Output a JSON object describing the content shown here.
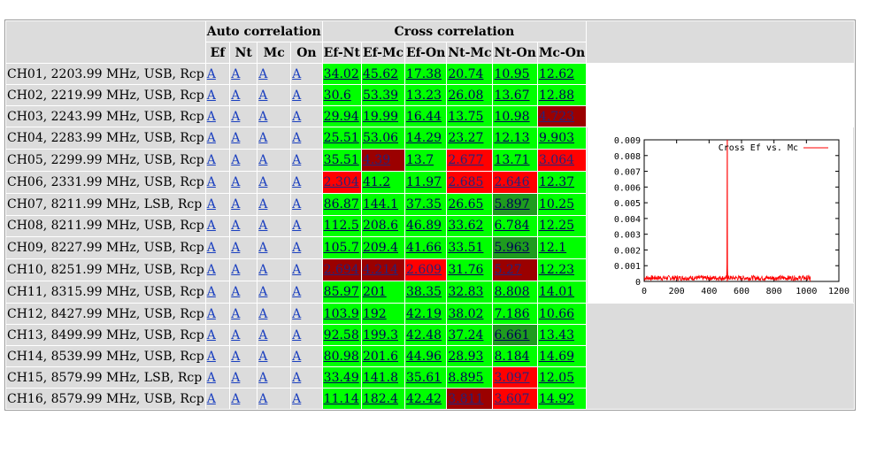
{
  "headers": {
    "auto": "Auto correlation",
    "cross": "Cross correlation",
    "auto_cols": [
      "Ef",
      "Nt",
      "Mc",
      "On"
    ],
    "cross_cols": [
      "Ef-Nt",
      "Ef-Mc",
      "Ef-On",
      "Nt-Mc",
      "Nt-On",
      "Mc-On"
    ]
  },
  "link_text": "A",
  "colors": {
    "good": "#00ff00",
    "bad": "#ff0000",
    "very_bad": "#9b0000",
    "marginal": "#1f9b1f",
    "header_bg": "#dcdcdc"
  },
  "rows": [
    {
      "label": "CH01, 2203.99 MHz, USB, Rcp",
      "values": [
        "34.02",
        "45.62",
        "17.38",
        "20.74",
        "10.95",
        "12.62"
      ],
      "status": [
        "g",
        "g",
        "g",
        "g",
        "g",
        "g"
      ]
    },
    {
      "label": "CH02, 2219.99 MHz, USB, Rcp",
      "values": [
        "30.6",
        "53.39",
        "13.23",
        "26.08",
        "13.67",
        "12.88"
      ],
      "status": [
        "g",
        "g",
        "g",
        "g",
        "g",
        "g"
      ]
    },
    {
      "label": "CH03, 2243.99 MHz, USB, Rcp",
      "values": [
        "29.94",
        "19.99",
        "16.44",
        "13.75",
        "10.98",
        "4.723"
      ],
      "status": [
        "g",
        "g",
        "g",
        "g",
        "g",
        "dr"
      ]
    },
    {
      "label": "CH04, 2283.99 MHz, USB, Rcp",
      "values": [
        "25.51",
        "53.06",
        "14.29",
        "23.27",
        "12.13",
        "9.903"
      ],
      "status": [
        "g",
        "g",
        "g",
        "g",
        "g",
        "g"
      ]
    },
    {
      "label": "CH05, 2299.99 MHz, USB, Rcp",
      "values": [
        "35.51",
        "4.39",
        "13.7",
        "2.677",
        "13.71",
        "3.064"
      ],
      "status": [
        "g",
        "dr",
        "g",
        "r",
        "g",
        "r"
      ]
    },
    {
      "label": "CH06, 2331.99 MHz, USB, Rcp",
      "values": [
        "2.304",
        "41.2",
        "11.97",
        "2.685",
        "2.646",
        "12.37"
      ],
      "status": [
        "r",
        "g",
        "g",
        "r",
        "r",
        "g"
      ]
    },
    {
      "label": "CH07, 8211.99 MHz, LSB, Rcp",
      "values": [
        "86.87",
        "144.1",
        "37.35",
        "26.65",
        "5.897",
        "10.25"
      ],
      "status": [
        "g",
        "g",
        "g",
        "g",
        "dg",
        "g"
      ]
    },
    {
      "label": "CH08, 8211.99 MHz, USB, Rcp",
      "values": [
        "112.5",
        "208.6",
        "46.89",
        "33.62",
        "6.784",
        "12.25"
      ],
      "status": [
        "g",
        "g",
        "g",
        "g",
        "g",
        "g"
      ]
    },
    {
      "label": "CH09, 8227.99 MHz, USB, Rcp",
      "values": [
        "105.7",
        "209.4",
        "41.66",
        "33.51",
        "5.963",
        "12.1"
      ],
      "status": [
        "g",
        "g",
        "g",
        "g",
        "dg",
        "g"
      ]
    },
    {
      "label": "CH10, 8251.99 MHz, USB, Rcp",
      "values": [
        "2.694",
        "4.214",
        "2.609",
        "31.76",
        "5.27",
        "12.23"
      ],
      "status": [
        "dr",
        "dr",
        "r",
        "g",
        "dr",
        "g"
      ]
    },
    {
      "label": "CH11, 8315.99 MHz, USB, Rcp",
      "values": [
        "85.97",
        "201",
        "38.35",
        "32.83",
        "8.808",
        "14.01"
      ],
      "status": [
        "g",
        "g",
        "g",
        "g",
        "g",
        "g"
      ]
    },
    {
      "label": "CH12, 8427.99 MHz, USB, Rcp",
      "values": [
        "103.9",
        "192",
        "42.19",
        "38.02",
        "7.186",
        "10.66"
      ],
      "status": [
        "g",
        "g",
        "g",
        "g",
        "g",
        "g"
      ]
    },
    {
      "label": "CH13, 8499.99 MHz, USB, Rcp",
      "values": [
        "92.58",
        "199.3",
        "42.48",
        "37.24",
        "6.661",
        "13.43"
      ],
      "status": [
        "g",
        "g",
        "g",
        "g",
        "dg",
        "g"
      ]
    },
    {
      "label": "CH14, 8539.99 MHz, USB, Rcp",
      "values": [
        "80.98",
        "201.6",
        "44.96",
        "28.93",
        "8.184",
        "14.69"
      ],
      "status": [
        "g",
        "g",
        "g",
        "g",
        "g",
        "g"
      ]
    },
    {
      "label": "CH15, 8579.99 MHz, LSB, Rcp",
      "values": [
        "33.49",
        "141.8",
        "35.61",
        "8.895",
        "3.097",
        "12.05"
      ],
      "status": [
        "g",
        "g",
        "g",
        "g",
        "r",
        "g"
      ]
    },
    {
      "label": "CH16, 8579.99 MHz, USB, Rcp",
      "values": [
        "11.14",
        "182.4",
        "42.42",
        "3.811",
        "3.607",
        "14.92"
      ],
      "status": [
        "g",
        "g",
        "g",
        "dr",
        "r",
        "g"
      ]
    }
  ],
  "plot": {
    "chart_data": {
      "type": "line",
      "series": [
        {
          "name": "Cross Ef vs. Mc"
        }
      ],
      "xlim": [
        0,
        1200
      ],
      "ylim": [
        0,
        0.009
      ],
      "x_ticks": [
        "0",
        "200",
        "400",
        "600",
        "800",
        "1000",
        "1200"
      ],
      "y_ticks": [
        "0",
        "0.001",
        "0.002",
        "0.003",
        "0.004",
        "0.005",
        "0.006",
        "0.007",
        "0.008",
        "0.009"
      ],
      "peak": {
        "x": 512,
        "y": 0.009
      },
      "secondary_peak": {
        "x": 512,
        "y": 0.0012
      },
      "noise_floor": 0.0002,
      "x_end": 1024,
      "line_color": "#ff0000"
    }
  }
}
